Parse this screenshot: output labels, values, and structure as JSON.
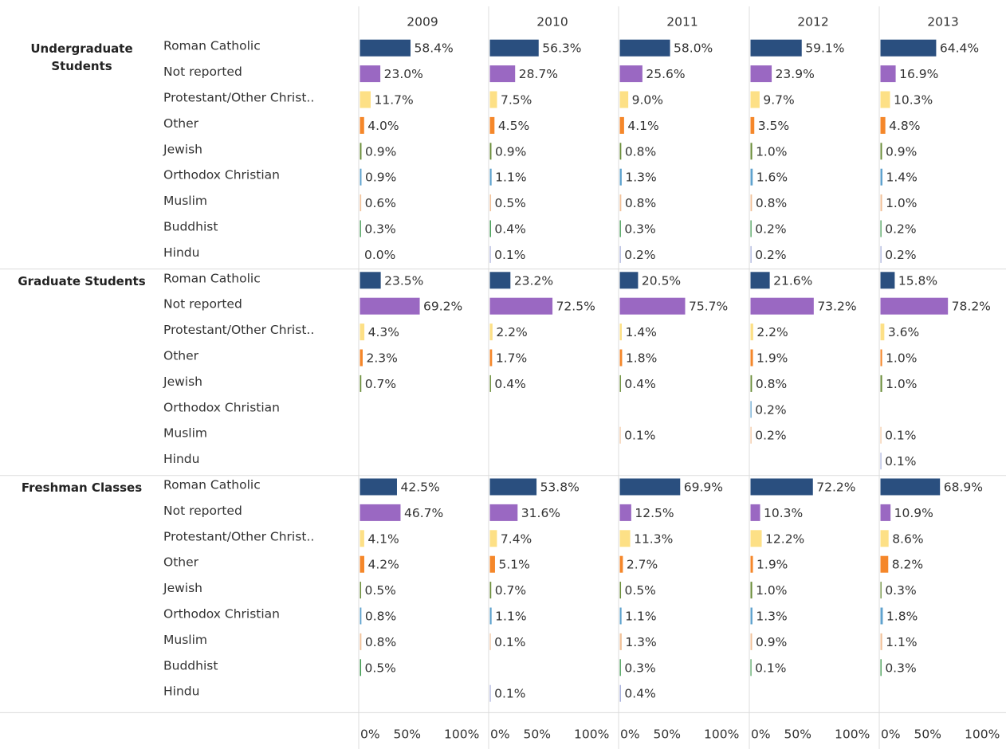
{
  "chart_data": {
    "type": "bar",
    "orientation": "horizontal",
    "columns": [
      2009,
      2010,
      2011,
      2012,
      2013
    ],
    "xlim": [
      0,
      100
    ],
    "xticks": [
      {
        "value": 0,
        "label": "0%"
      },
      {
        "value": 50,
        "label": "50%"
      },
      {
        "value": 100,
        "label": "100%"
      }
    ],
    "groups": [
      {
        "name": "Undergraduate Students",
        "rows": [
          {
            "category": "Roman Catholic",
            "color": "#2a4f7f",
            "values": [
              58.4,
              56.3,
              58.0,
              59.1,
              64.4
            ],
            "value_labels": [
              "58.4%",
              "56.3%",
              "58.0%",
              "59.1%",
              "64.4%"
            ]
          },
          {
            "category": "Not reported",
            "color": "#9a68c2",
            "values": [
              23.0,
              28.7,
              25.6,
              23.9,
              16.9
            ],
            "value_labels": [
              "23.0%",
              "28.7%",
              "25.6%",
              "23.9%",
              "16.9%"
            ]
          },
          {
            "category": "Protestant/Other Christ..",
            "color": "#fde086",
            "values": [
              11.7,
              7.5,
              9.0,
              9.7,
              10.3
            ],
            "value_labels": [
              "11.7%",
              "7.5%",
              "9.0%",
              "9.7%",
              "10.3%"
            ]
          },
          {
            "category": "Other",
            "color": "#f5872a",
            "values": [
              4.0,
              4.5,
              4.1,
              3.5,
              4.8
            ],
            "value_labels": [
              "4.0%",
              "4.5%",
              "4.1%",
              "3.5%",
              "4.8%"
            ]
          },
          {
            "category": "Jewish",
            "color": "#6b8e3a",
            "values": [
              0.9,
              0.9,
              0.8,
              1.0,
              0.9
            ],
            "value_labels": [
              "0.9%",
              "0.9%",
              "0.8%",
              "1.0%",
              "0.9%"
            ]
          },
          {
            "category": "Orthodox Christian",
            "color": "#5fa2ce",
            "values": [
              0.9,
              1.1,
              1.3,
              1.6,
              1.4
            ],
            "value_labels": [
              "0.9%",
              "1.1%",
              "1.3%",
              "1.6%",
              "1.4%"
            ]
          },
          {
            "category": "Muslim",
            "color": "#f1c29a",
            "values": [
              0.6,
              0.5,
              0.8,
              0.8,
              1.0
            ],
            "value_labels": [
              "0.6%",
              "0.5%",
              "0.8%",
              "0.8%",
              "1.0%"
            ]
          },
          {
            "category": "Buddhist",
            "color": "#3f9a4f",
            "values": [
              0.3,
              0.4,
              0.3,
              0.2,
              0.2
            ],
            "value_labels": [
              "0.3%",
              "0.4%",
              "0.3%",
              "0.2%",
              "0.2%"
            ]
          },
          {
            "category": "Hindu",
            "color": "#a3acd9",
            "values": [
              0.0,
              0.1,
              0.2,
              0.2,
              0.2
            ],
            "value_labels": [
              "0.0%",
              "0.1%",
              "0.2%",
              "0.2%",
              "0.2%"
            ]
          }
        ]
      },
      {
        "name": "Graduate Students",
        "rows": [
          {
            "category": "Roman Catholic",
            "color": "#2a4f7f",
            "values": [
              23.5,
              23.2,
              20.5,
              21.6,
              15.8
            ],
            "value_labels": [
              "23.5%",
              "23.2%",
              "20.5%",
              "21.6%",
              "15.8%"
            ]
          },
          {
            "category": "Not reported",
            "color": "#9a68c2",
            "values": [
              69.2,
              72.5,
              75.7,
              73.2,
              78.2
            ],
            "value_labels": [
              "69.2%",
              "72.5%",
              "75.7%",
              "73.2%",
              "78.2%"
            ]
          },
          {
            "category": "Protestant/Other Christ..",
            "color": "#fde086",
            "values": [
              4.3,
              2.2,
              1.4,
              2.2,
              3.6
            ],
            "value_labels": [
              "4.3%",
              "2.2%",
              "1.4%",
              "2.2%",
              "3.6%"
            ]
          },
          {
            "category": "Other",
            "color": "#f5872a",
            "values": [
              2.3,
              1.7,
              1.8,
              1.9,
              1.0
            ],
            "value_labels": [
              "2.3%",
              "1.7%",
              "1.8%",
              "1.9%",
              "1.0%"
            ]
          },
          {
            "category": "Jewish",
            "color": "#6b8e3a",
            "values": [
              0.7,
              0.4,
              0.4,
              0.8,
              1.0
            ],
            "value_labels": [
              "0.7%",
              "0.4%",
              "0.4%",
              "0.8%",
              "1.0%"
            ]
          },
          {
            "category": "Orthodox Christian",
            "color": "#5fa2ce",
            "values": [
              null,
              null,
              null,
              0.2,
              null
            ],
            "value_labels": [
              null,
              null,
              null,
              "0.2%",
              null
            ]
          },
          {
            "category": "Muslim",
            "color": "#f1c29a",
            "values": [
              null,
              null,
              0.1,
              0.2,
              0.1
            ],
            "value_labels": [
              null,
              null,
              "0.1%",
              "0.2%",
              "0.1%"
            ]
          },
          {
            "category": "Hindu",
            "color": "#a3acd9",
            "values": [
              null,
              null,
              null,
              null,
              0.1
            ],
            "value_labels": [
              null,
              null,
              null,
              null,
              "0.1%"
            ]
          }
        ]
      },
      {
        "name": "Freshman Classes",
        "rows": [
          {
            "category": "Roman Catholic",
            "color": "#2a4f7f",
            "values": [
              42.5,
              53.8,
              69.9,
              72.2,
              68.9
            ],
            "value_labels": [
              "42.5%",
              "53.8%",
              "69.9%",
              "72.2%",
              "68.9%"
            ]
          },
          {
            "category": "Not reported",
            "color": "#9a68c2",
            "values": [
              46.7,
              31.6,
              12.5,
              10.3,
              10.9
            ],
            "value_labels": [
              "46.7%",
              "31.6%",
              "12.5%",
              "10.3%",
              "10.9%"
            ]
          },
          {
            "category": "Protestant/Other Christ..",
            "color": "#fde086",
            "values": [
              4.1,
              7.4,
              11.3,
              12.2,
              8.6
            ],
            "value_labels": [
              "4.1%",
              "7.4%",
              "11.3%",
              "12.2%",
              "8.6%"
            ]
          },
          {
            "category": "Other",
            "color": "#f5872a",
            "values": [
              4.2,
              5.1,
              2.7,
              1.9,
              8.2
            ],
            "value_labels": [
              "4.2%",
              "5.1%",
              "2.7%",
              "1.9%",
              "8.2%"
            ]
          },
          {
            "category": "Jewish",
            "color": "#6b8e3a",
            "values": [
              0.5,
              0.7,
              0.5,
              1.0,
              0.3
            ],
            "value_labels": [
              "0.5%",
              "0.7%",
              "0.5%",
              "1.0%",
              "0.3%"
            ]
          },
          {
            "category": "Orthodox Christian",
            "color": "#5fa2ce",
            "values": [
              0.8,
              1.1,
              1.1,
              1.3,
              1.8
            ],
            "value_labels": [
              "0.8%",
              "1.1%",
              "1.1%",
              "1.3%",
              "1.8%"
            ]
          },
          {
            "category": "Muslim",
            "color": "#f1c29a",
            "values": [
              0.8,
              0.1,
              1.3,
              0.9,
              1.1
            ],
            "value_labels": [
              "0.8%",
              "0.1%",
              "1.3%",
              "0.9%",
              "1.1%"
            ]
          },
          {
            "category": "Buddhist",
            "color": "#3f9a4f",
            "values": [
              0.5,
              null,
              0.3,
              0.1,
              0.3
            ],
            "value_labels": [
              "0.5%",
              null,
              "0.3%",
              "0.1%",
              "0.3%"
            ]
          },
          {
            "category": "Hindu",
            "color": "#a3acd9",
            "values": [
              null,
              0.1,
              0.4,
              null,
              null
            ],
            "value_labels": [
              null,
              "0.1%",
              "0.4%",
              null,
              null
            ]
          }
        ]
      }
    ]
  }
}
